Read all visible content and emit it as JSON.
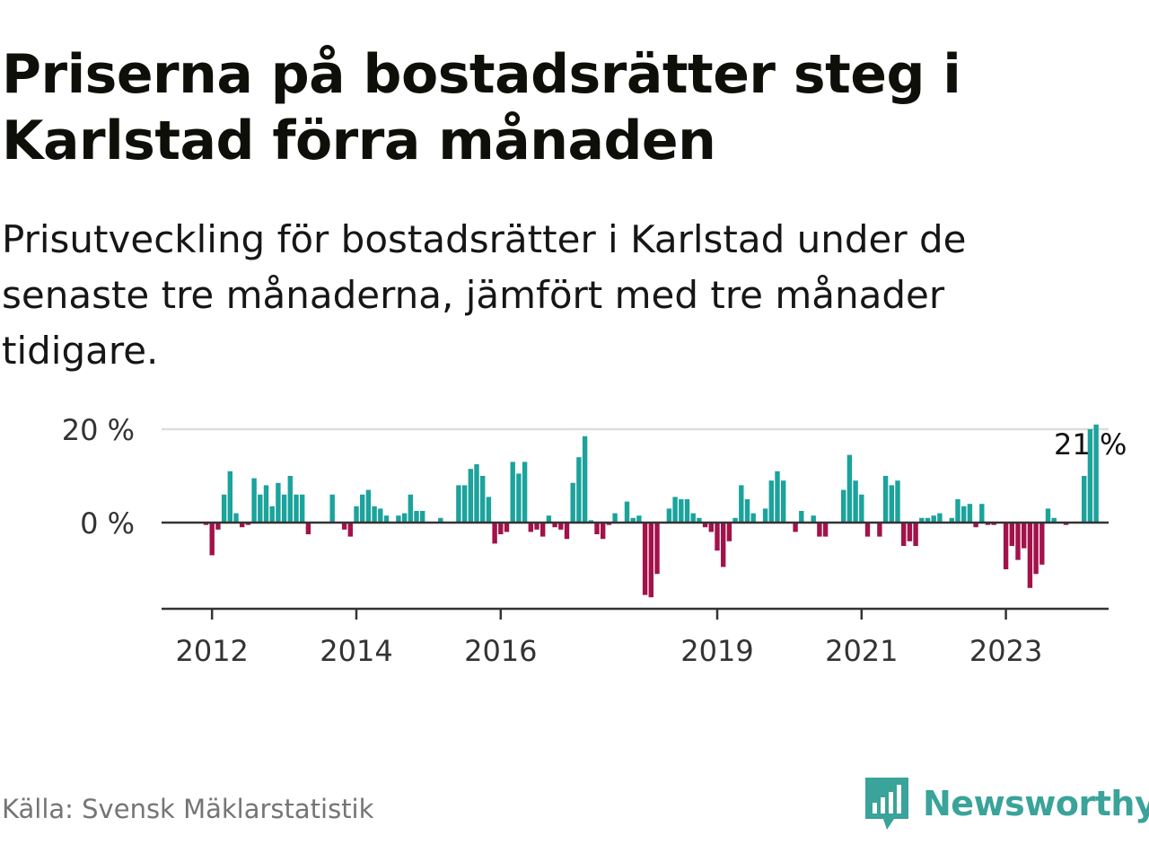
{
  "header": {
    "title": "Priserna på bostadsrätter steg i Karlstad förra månaden",
    "subtitle": "Prisutveckling för bostadsrätter i Karlstad under de senaste tre månaderna, jämfört med tre månader tidigare."
  },
  "footer": {
    "source": "Källa: Svensk Mäklarstatistik",
    "brand": "Newsworthy",
    "brand_icon": "bar-chart-speech-bubble-icon"
  },
  "colors": {
    "positive": "#1ba39c",
    "negative": "#a3124a",
    "grid": "#dddddd",
    "axis": "#333333",
    "brand": "#3aa39a"
  },
  "chart_data": {
    "type": "bar",
    "x_start": "2011-12",
    "x_ticks": [
      "2012",
      "2014",
      "2016",
      "2019",
      "2021",
      "2023"
    ],
    "y_ticks": [
      "20 %",
      "0 %"
    ],
    "y_tick_values": [
      20,
      0
    ],
    "ylim": [
      -18,
      22
    ],
    "grid": true,
    "annotation": {
      "text": "21 %",
      "index": 146
    },
    "values": [
      -0.5,
      -7,
      -1.5,
      6,
      11,
      2,
      -1,
      -0.5,
      9.5,
      6,
      8,
      3.5,
      8.5,
      6,
      10,
      6,
      6,
      -2.5,
      0,
      0,
      0,
      6,
      0,
      -1.5,
      -3,
      3.5,
      6,
      7,
      3.5,
      3,
      1.5,
      0,
      1.5,
      2,
      6,
      2.5,
      2.5,
      0,
      0,
      1,
      0,
      0,
      8,
      8,
      11.5,
      12.5,
      10,
      5.5,
      -4.5,
      -2.5,
      -2,
      13,
      10.5,
      13,
      -2,
      -1.5,
      -3,
      1.5,
      -1,
      -1.5,
      -3.5,
      8.5,
      14,
      18.5,
      0.5,
      -2.5,
      -3.5,
      -0.5,
      2,
      0,
      4.5,
      1,
      1.5,
      -15.5,
      -16,
      -11,
      0,
      3,
      5.5,
      5,
      5,
      2,
      1,
      -1,
      -2,
      -6,
      -9.5,
      -4,
      1,
      8,
      5,
      2,
      0,
      3,
      9,
      11,
      9,
      0,
      -2,
      2.5,
      0,
      1.5,
      -3,
      -3,
      0,
      0,
      7,
      14.5,
      9,
      6,
      -3,
      0,
      -3,
      10,
      8,
      9,
      -5,
      -4,
      -5,
      1,
      1,
      1.5,
      2,
      0,
      1,
      5,
      3.5,
      4,
      -1,
      4,
      -0.5,
      -0.5,
      0,
      -10,
      -5,
      -8,
      -5.5,
      -14,
      -11,
      -9,
      3,
      1,
      0,
      -0.5,
      0,
      0,
      10,
      20,
      21
    ]
  }
}
